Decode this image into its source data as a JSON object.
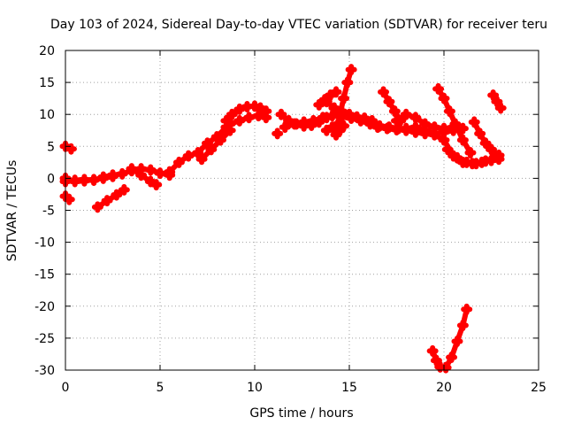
{
  "chart_data": {
    "type": "scatter",
    "title": "Day 103 of 2024, Sidereal Day-to-day VTEC variation (SDTVAR) for receiver teru",
    "xlabel": "GPS time / hours",
    "ylabel": "SDTVAR / TECUs",
    "xlim": [
      0,
      25
    ],
    "ylim": [
      -30,
      20
    ],
    "xticks": [
      0,
      5,
      10,
      15,
      20,
      25
    ],
    "yticks": [
      -30,
      -25,
      -20,
      -15,
      -10,
      -5,
      0,
      5,
      10,
      15,
      20
    ],
    "grid": true,
    "marker": "+",
    "color": "#ff0000",
    "series": [
      {
        "x": [
          0.0,
          0.3
        ],
        "y": [
          5.0,
          4.6
        ]
      },
      {
        "x": [
          0.0,
          0.2
        ],
        "y": [
          -2.8,
          -3.3
        ]
      },
      {
        "x": [
          0.0,
          0.5,
          1.0,
          1.5,
          2.0,
          2.5,
          3.0,
          3.5,
          4.0,
          4.5,
          5.0,
          5.5
        ],
        "y": [
          -0.5,
          -0.3,
          -0.2,
          -0.3,
          0.2,
          0.5,
          0.7,
          1.2,
          1.5,
          1.3,
          0.8,
          0.5
        ]
      },
      {
        "x": [
          0.0,
          0.5,
          1.0,
          1.5,
          2.0,
          2.5
        ],
        "y": [
          0.0,
          -0.5,
          -0.4,
          -0.2,
          0.0,
          0.3
        ]
      },
      {
        "x": [
          1.7,
          2.2,
          2.7,
          3.1
        ],
        "y": [
          -4.5,
          -3.5,
          -2.6,
          -1.8
        ]
      },
      {
        "x": [
          3.5,
          4.0,
          4.5,
          4.8
        ],
        "y": [
          1.5,
          0.5,
          -0.5,
          -1.0
        ]
      },
      {
        "x": [
          5.5,
          6.0,
          6.5,
          7.0,
          7.5,
          8.0,
          8.5
        ],
        "y": [
          1.0,
          2.5,
          3.5,
          4.0,
          5.5,
          6.5,
          8.0
        ]
      },
      {
        "x": [
          7.2,
          7.7,
          8.2,
          8.7
        ],
        "y": [
          3.0,
          4.5,
          6.0,
          7.5
        ]
      },
      {
        "x": [
          8.5,
          8.8,
          9.2,
          9.6,
          10.0,
          10.3,
          10.6
        ],
        "y": [
          9.0,
          10.0,
          10.8,
          11.2,
          11.3,
          11.0,
          10.5
        ]
      },
      {
        "x": [
          8.7,
          9.2,
          9.7,
          10.2,
          10.6
        ],
        "y": [
          8.5,
          9.0,
          9.5,
          9.8,
          9.5
        ]
      },
      {
        "x": [
          11.2
        ],
        "y": [
          7.0
        ]
      },
      {
        "x": [
          11.4,
          11.8,
          12.2,
          12.6,
          13.0,
          13.4,
          13.8
        ],
        "y": [
          10.0,
          9.0,
          8.5,
          8.2,
          8.3,
          8.8,
          9.5
        ]
      },
      {
        "x": [
          11.6,
          12.1,
          12.6,
          13.1,
          13.6,
          14.1,
          14.6,
          15.1,
          15.6,
          16.1,
          16.6,
          17.1,
          17.6
        ],
        "y": [
          8.0,
          8.5,
          8.8,
          9.0,
          9.5,
          9.8,
          9.6,
          9.4,
          9.0,
          8.5,
          8.2,
          8.0,
          7.8
        ]
      },
      {
        "x": [
          13.4,
          13.7,
          14.0,
          14.3
        ],
        "y": [
          11.5,
          12.3,
          13.0,
          13.5
        ]
      },
      {
        "x": [
          13.8,
          14.1,
          14.4
        ],
        "y": [
          7.5,
          8.0,
          8.5
        ]
      },
      {
        "x": [
          14.3,
          14.5,
          14.7
        ],
        "y": [
          6.8,
          7.5,
          8.2
        ]
      },
      {
        "x": [
          13.8,
          14.2,
          14.6,
          15.0,
          15.4,
          15.8,
          16.2
        ],
        "y": [
          12.0,
          11.0,
          10.5,
          10.0,
          9.6,
          9.4,
          9.0
        ]
      },
      {
        "x": [
          14.5,
          14.7,
          14.9,
          15.1
        ],
        "y": [
          10.0,
          12.5,
          15.0,
          17.0
        ]
      },
      {
        "x": [
          16.5,
          17.0,
          17.5,
          18.0,
          18.5,
          19.0,
          19.5,
          20.0,
          20.5,
          21.0
        ],
        "y": [
          8.0,
          7.8,
          7.6,
          7.8,
          8.0,
          7.5,
          7.0,
          7.2,
          7.5,
          7.8
        ]
      },
      {
        "x": [
          16.8,
          17.1,
          17.4,
          17.7
        ],
        "y": [
          13.5,
          12.0,
          10.5,
          9.0
        ]
      },
      {
        "x": [
          17.5,
          18.0,
          18.5,
          19.0,
          19.5,
          20.0,
          20.5
        ],
        "y": [
          9.0,
          10.0,
          9.5,
          8.5,
          8.0,
          7.8,
          8.0
        ]
      },
      {
        "x": [
          18.0,
          18.5,
          19.0,
          19.5,
          20.0,
          20.5,
          21.0,
          21.5,
          22.0,
          22.5,
          22.9
        ],
        "y": [
          7.5,
          7.2,
          7.0,
          6.8,
          6.0,
          3.5,
          2.5,
          2.3,
          2.5,
          2.8,
          3.0
        ]
      },
      {
        "x": [
          19.7,
          20.0,
          20.3,
          20.6,
          21.0,
          21.4
        ],
        "y": [
          14.0,
          12.5,
          10.5,
          8.5,
          6.0,
          4.0
        ]
      },
      {
        "x": [
          20.2,
          20.7,
          21.2,
          21.7,
          22.2,
          22.7
        ],
        "y": [
          4.5,
          3.2,
          2.5,
          2.3,
          2.7,
          3.3
        ]
      },
      {
        "x": [
          21.6,
          21.9,
          22.2,
          22.5,
          22.9
        ],
        "y": [
          8.8,
          7.0,
          5.5,
          4.5,
          3.6
        ]
      },
      {
        "x": [
          22.6,
          22.8,
          23.0
        ],
        "y": [
          13.0,
          12.0,
          11.0
        ]
      },
      {
        "x": [
          19.4,
          19.6,
          19.8,
          20.1,
          20.4,
          20.7,
          21.0,
          21.2
        ],
        "y": [
          -27.0,
          -28.5,
          -29.5,
          -29.6,
          -28.0,
          -25.5,
          -23.0,
          -20.5
        ]
      }
    ]
  }
}
